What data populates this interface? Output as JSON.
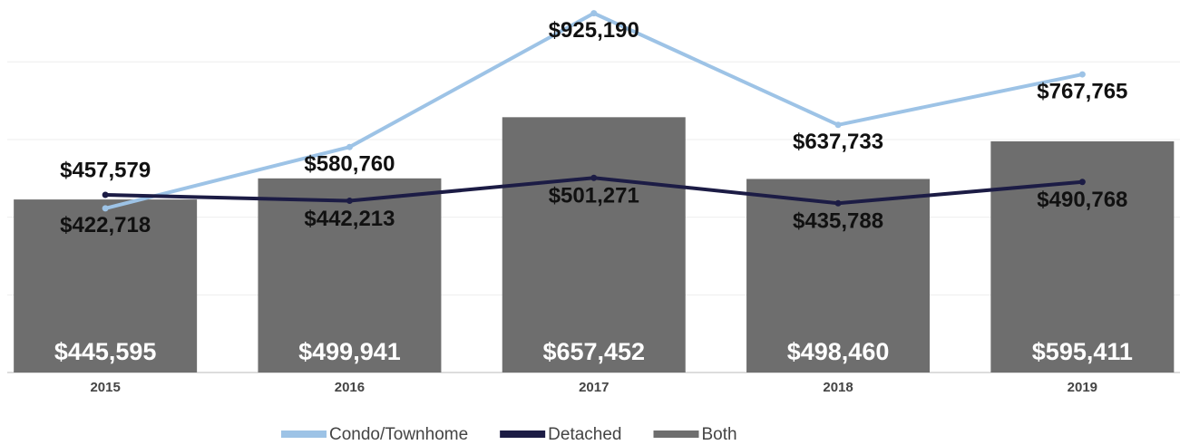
{
  "chart_data": {
    "type": "bar",
    "categories": [
      "2015",
      "2016",
      "2017",
      "2018",
      "2019"
    ],
    "series": [
      {
        "name": "Condo/Townhome",
        "type": "line",
        "color": "#9dc3e6",
        "values": [
          422718,
          580760,
          925190,
          637733,
          767765
        ],
        "value_labels": [
          "$422,718",
          "$580,760",
          "$925,190",
          "$637,733",
          "$767,765"
        ]
      },
      {
        "name": "Detached",
        "type": "line",
        "color": "#1c1c45",
        "values": [
          457579,
          442213,
          501271,
          435788,
          490768
        ],
        "value_labels": [
          "$457,579",
          "$442,213",
          "$501,271",
          "$435,788",
          "$490,768"
        ]
      },
      {
        "name": "Both",
        "type": "bar",
        "color": "#6e6e6e",
        "values": [
          445595,
          499941,
          657452,
          498460,
          595411
        ],
        "value_labels": [
          "$445,595",
          "$499,941",
          "$657,452",
          "$498,460",
          "$595,411"
        ]
      }
    ],
    "ylim": [
      0,
      950000
    ],
    "yticks": [
      0,
      200000,
      400000,
      600000,
      800000
    ],
    "grid": true,
    "legend": "bottom"
  }
}
